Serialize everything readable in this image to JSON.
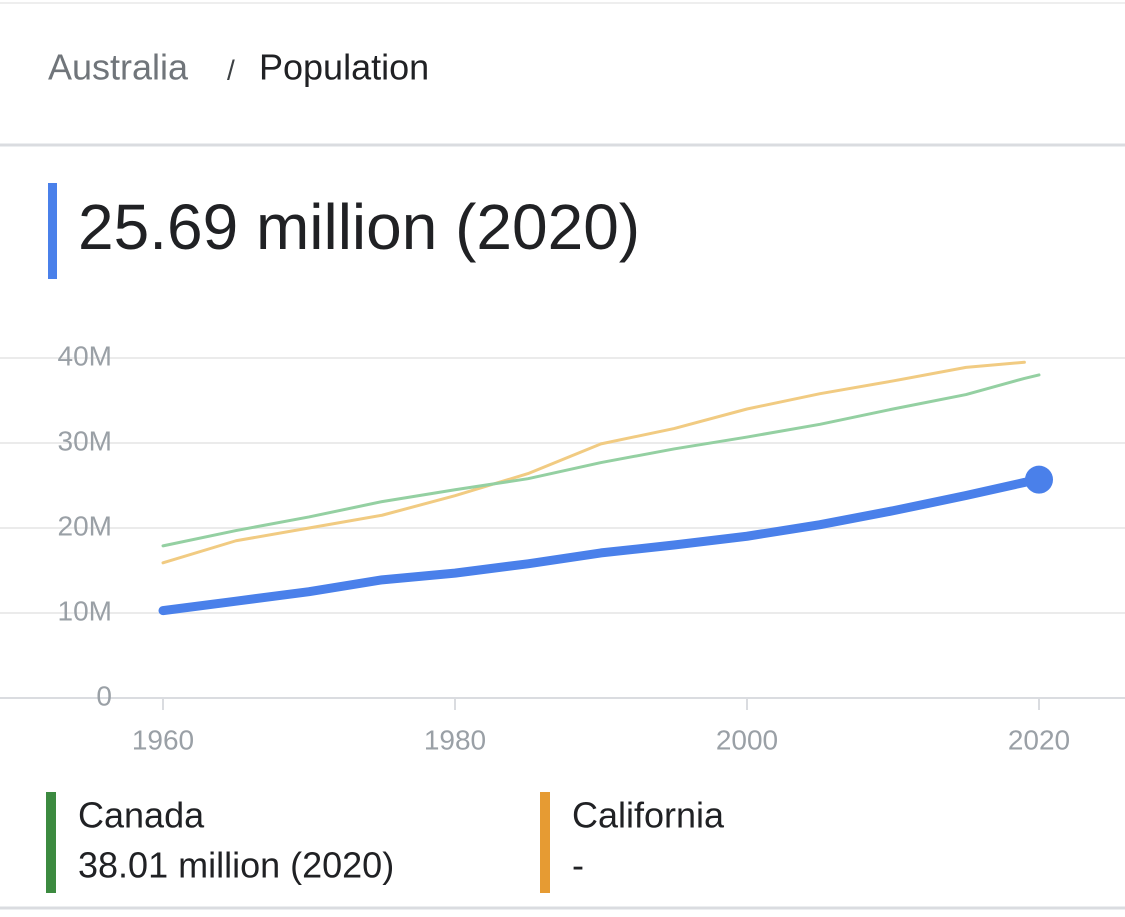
{
  "breadcrumb": {
    "separator": "/",
    "title": "Population"
  },
  "chart_data": {
    "type": "line",
    "x": [
      1960,
      1965,
      1970,
      1975,
      1980,
      1985,
      1990,
      1995,
      2000,
      2005,
      2010,
      2015,
      2019,
      2020
    ],
    "series": [
      {
        "name": "Australia",
        "color": "#4a80ea",
        "summary": "25.69 million (2020)",
        "values": [
          10.28,
          11.39,
          12.51,
          13.9,
          14.69,
          15.79,
          17.07,
          18.0,
          19.03,
          20.39,
          22.03,
          23.82,
          25.36,
          25.69
        ]
      },
      {
        "name": "Canada",
        "color": "#94d0a2",
        "legend_color": "#3c8a40",
        "summary": "38.01 million (2020)",
        "values": [
          17.9,
          19.7,
          21.3,
          23.1,
          24.5,
          25.8,
          27.7,
          29.3,
          30.7,
          32.2,
          34.0,
          35.7,
          37.6,
          38.01
        ]
      },
      {
        "name": "California",
        "color": "#f1cb82",
        "legend_color": "#e69b33",
        "summary": "-",
        "values": [
          15.9,
          18.5,
          20.0,
          21.5,
          23.8,
          26.4,
          29.9,
          31.7,
          34.0,
          35.8,
          37.3,
          38.9,
          39.5,
          null
        ]
      }
    ],
    "xlim": [
      1960,
      2020
    ],
    "xticks": [
      1960,
      1980,
      2000,
      2020
    ],
    "ylim": [
      0,
      40
    ],
    "yticks": [
      0,
      {
        "value": 10,
        "label": "10M"
      },
      {
        "value": 20,
        "label": "20M"
      },
      {
        "value": 30,
        "label": "30M"
      },
      {
        "value": 40,
        "label": "40M"
      }
    ],
    "grid": true
  }
}
